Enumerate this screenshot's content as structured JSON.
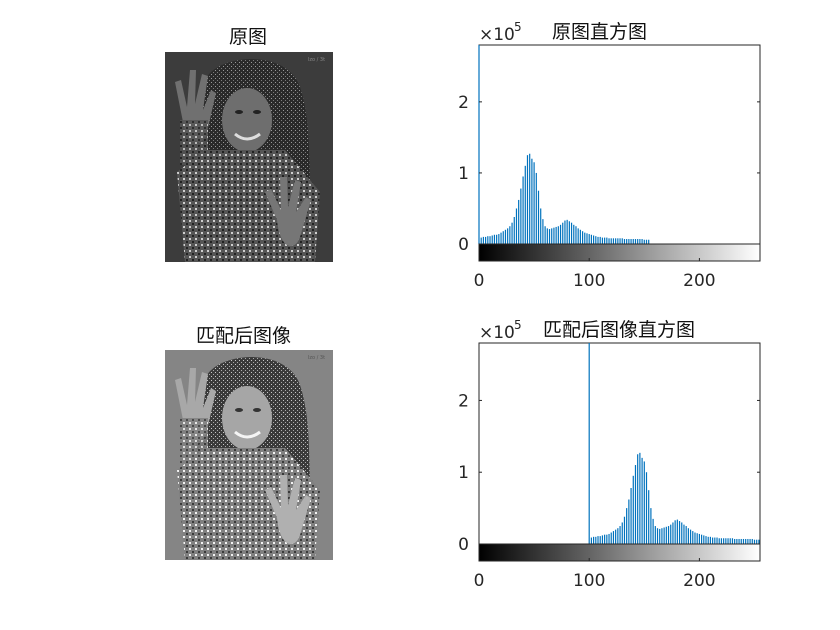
{
  "panels": {
    "original_image": {
      "title": "原图",
      "watermark": "lzo / 3t"
    },
    "matched_image": {
      "title": "匹配后图像",
      "watermark": "lzo / 3t"
    }
  },
  "colors": {
    "bar": "#0072bd",
    "axis": "#262626"
  },
  "chart_data": [
    {
      "type": "bar",
      "title": "原图直方图",
      "exponent_label": "×10",
      "exponent": "5",
      "xlim": [
        0,
        255
      ],
      "ylim": [
        0,
        2.8
      ],
      "xticks": [
        0,
        100,
        200
      ],
      "yticks": [
        0,
        1,
        2
      ],
      "colorbar": "grayscale 0-255",
      "x": [
        0,
        2,
        4,
        6,
        8,
        10,
        12,
        14,
        16,
        18,
        20,
        22,
        24,
        26,
        28,
        30,
        32,
        34,
        36,
        38,
        40,
        42,
        44,
        46,
        48,
        50,
        52,
        54,
        56,
        58,
        60,
        62,
        64,
        66,
        68,
        70,
        72,
        74,
        76,
        78,
        80,
        82,
        84,
        86,
        88,
        90,
        92,
        94,
        96,
        98,
        100,
        102,
        104,
        106,
        108,
        110,
        112,
        114,
        116,
        118,
        120,
        122,
        124,
        126,
        128,
        130,
        132,
        134,
        136,
        138,
        140,
        142,
        144,
        146,
        148,
        150,
        152,
        154
      ],
      "values": [
        2.8,
        0.09,
        0.1,
        0.1,
        0.11,
        0.11,
        0.12,
        0.13,
        0.13,
        0.14,
        0.16,
        0.18,
        0.2,
        0.22,
        0.25,
        0.3,
        0.38,
        0.5,
        0.62,
        0.78,
        0.95,
        1.1,
        1.25,
        1.27,
        1.2,
        1.15,
        1.0,
        0.75,
        0.5,
        0.35,
        0.25,
        0.22,
        0.21,
        0.22,
        0.23,
        0.24,
        0.25,
        0.27,
        0.3,
        0.33,
        0.34,
        0.32,
        0.3,
        0.27,
        0.25,
        0.22,
        0.2,
        0.18,
        0.16,
        0.15,
        0.14,
        0.13,
        0.12,
        0.11,
        0.1,
        0.1,
        0.09,
        0.09,
        0.09,
        0.08,
        0.08,
        0.08,
        0.08,
        0.08,
        0.08,
        0.08,
        0.07,
        0.07,
        0.07,
        0.07,
        0.07,
        0.07,
        0.07,
        0.07,
        0.07,
        0.06,
        0.06,
        0.06
      ]
    },
    {
      "type": "bar",
      "title": "匹配后图像直方图",
      "exponent_label": "×10",
      "exponent": "5",
      "xlim": [
        0,
        255
      ],
      "ylim": [
        0,
        2.8
      ],
      "xticks": [
        0,
        100,
        200
      ],
      "yticks": [
        0,
        1,
        2
      ],
      "colorbar": "grayscale 0-255",
      "x": [
        100,
        102,
        104,
        106,
        108,
        110,
        112,
        114,
        116,
        118,
        120,
        122,
        124,
        126,
        128,
        130,
        132,
        134,
        136,
        138,
        140,
        142,
        144,
        146,
        148,
        150,
        152,
        154,
        156,
        158,
        160,
        162,
        164,
        166,
        168,
        170,
        172,
        174,
        176,
        178,
        180,
        182,
        184,
        186,
        188,
        190,
        192,
        194,
        196,
        198,
        200,
        202,
        204,
        206,
        208,
        210,
        212,
        214,
        216,
        218,
        220,
        222,
        224,
        226,
        228,
        230,
        232,
        234,
        236,
        238,
        240,
        242,
        244,
        246,
        248,
        250,
        252,
        254
      ],
      "values": [
        2.8,
        0.09,
        0.1,
        0.1,
        0.11,
        0.11,
        0.12,
        0.13,
        0.13,
        0.14,
        0.16,
        0.18,
        0.2,
        0.22,
        0.25,
        0.3,
        0.38,
        0.5,
        0.62,
        0.78,
        0.95,
        1.1,
        1.25,
        1.27,
        1.2,
        1.15,
        1.0,
        0.75,
        0.5,
        0.35,
        0.25,
        0.22,
        0.21,
        0.22,
        0.23,
        0.24,
        0.25,
        0.27,
        0.3,
        0.33,
        0.34,
        0.32,
        0.3,
        0.27,
        0.25,
        0.22,
        0.2,
        0.18,
        0.16,
        0.15,
        0.14,
        0.13,
        0.12,
        0.11,
        0.1,
        0.1,
        0.09,
        0.09,
        0.09,
        0.08,
        0.08,
        0.08,
        0.08,
        0.08,
        0.08,
        0.08,
        0.07,
        0.07,
        0.07,
        0.07,
        0.07,
        0.07,
        0.07,
        0.07,
        0.07,
        0.06,
        0.06,
        0.06
      ]
    }
  ]
}
